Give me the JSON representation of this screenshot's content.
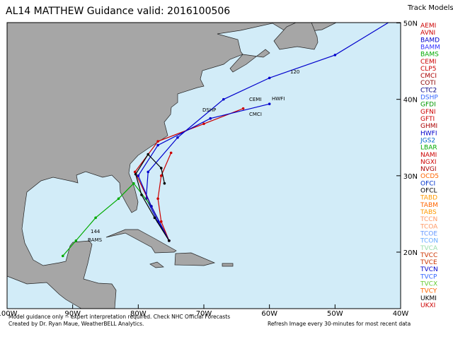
{
  "header": {
    "title": "AL14 MATTHEW Guidance valid: 2016100506",
    "legend_title": "Track Models"
  },
  "lat_ticks": [
    {
      "value": 50,
      "label": "50N"
    },
    {
      "value": 40,
      "label": "40N"
    },
    {
      "value": 30,
      "label": "30N"
    },
    {
      "value": 20,
      "label": "20N"
    }
  ],
  "lon_ticks": [
    {
      "value": -100,
      "label": "100W"
    },
    {
      "value": -90,
      "label": "90W"
    },
    {
      "value": -80,
      "label": "80W"
    },
    {
      "value": -70,
      "label": "70W"
    },
    {
      "value": -60,
      "label": "60W"
    },
    {
      "value": -50,
      "label": "50W"
    },
    {
      "value": -40,
      "label": "40W"
    }
  ],
  "models": [
    {
      "name": "AEMI",
      "color": "#cc0000"
    },
    {
      "name": "AVNI",
      "color": "#cc0000"
    },
    {
      "name": "BAMD",
      "color": "#0000cc",
      "lon": [
        -75.3,
        -77,
        -78.8,
        -78.5,
        -74,
        -67,
        -60,
        -50,
        -41
      ],
      "lat": [
        21.5,
        24,
        27,
        30.5,
        35,
        40,
        42.8,
        45.8,
        50.5
      ]
    },
    {
      "name": "BAMM",
      "color": "#3333ff"
    },
    {
      "name": "BAMS",
      "color": "#00aa00",
      "lon": [
        -75.3,
        -78,
        -80.7,
        -83,
        -86.5,
        -89.5,
        -91.5
      ],
      "lat": [
        21.5,
        26,
        29,
        27,
        24.5,
        21.5,
        19.5
      ]
    },
    {
      "name": "CEMI",
      "color": "#cc0000",
      "lon": [
        -75.3,
        -78,
        -80.5,
        -77,
        -70,
        -64
      ],
      "lat": [
        21.5,
        26,
        30.5,
        34.5,
        36.8,
        38.8
      ]
    },
    {
      "name": "CLP5",
      "color": "#cc0000",
      "lon": [
        -75.3,
        -76.5,
        -77,
        -76.5,
        -75
      ],
      "lat": [
        21.5,
        24,
        27,
        30,
        33
      ]
    },
    {
      "name": "CMCI",
      "color": "#aa0000"
    },
    {
      "name": "COTI",
      "color": "#880000"
    },
    {
      "name": "CTC2",
      "color": "#000088"
    },
    {
      "name": "DSHP",
      "color": "#3366ff"
    },
    {
      "name": "GFDI",
      "color": "#009900"
    },
    {
      "name": "GFNI",
      "color": "#cc0000"
    },
    {
      "name": "GFTI",
      "color": "#cc0000"
    },
    {
      "name": "GHMI",
      "color": "#aa0000"
    },
    {
      "name": "HWFI",
      "color": "#0000cc",
      "lon": [
        -75.3,
        -78,
        -80,
        -77,
        -69,
        -60
      ],
      "lat": [
        21.5,
        26,
        30,
        34,
        37.5,
        39.4
      ]
    },
    {
      "name": "JGS2",
      "color": "#0066cc"
    },
    {
      "name": "LBAR",
      "color": "#00aa00"
    },
    {
      "name": "NAMI",
      "color": "#cc0000"
    },
    {
      "name": "NGXI",
      "color": "#cc0000"
    },
    {
      "name": "NVGI",
      "color": "#aa0000"
    },
    {
      "name": "OCD5",
      "color": "#ff6600"
    },
    {
      "name": "OFCI",
      "color": "#0033cc"
    },
    {
      "name": "OFCL",
      "color": "#000000",
      "lon": [
        -75.3,
        -77.5,
        -79.5,
        -80.4,
        -78.5,
        -76.5,
        -76
      ],
      "lat": [
        21.5,
        24.5,
        27.5,
        30.2,
        32.8,
        31,
        29
      ]
    },
    {
      "name": "TABD",
      "color": "#ff9900"
    },
    {
      "name": "TABM",
      "color": "#ff6600"
    },
    {
      "name": "TABS",
      "color": "#ff9900"
    },
    {
      "name": "TCCN",
      "color": "#ff9966"
    },
    {
      "name": "TCOA",
      "color": "#ff9966"
    },
    {
      "name": "TCOE",
      "color": "#6699ff"
    },
    {
      "name": "TCON",
      "color": "#66aaff"
    },
    {
      "name": "TVCA",
      "color": "#99ddaa"
    },
    {
      "name": "TVCC",
      "color": "#cc3300"
    },
    {
      "name": "TVCE",
      "color": "#cc3300"
    },
    {
      "name": "TVCN",
      "color": "#0000cc"
    },
    {
      "name": "TVCP",
      "color": "#3366ff"
    },
    {
      "name": "TVCX",
      "color": "#66cc33"
    },
    {
      "name": "TVCY",
      "color": "#ff6600"
    },
    {
      "name": "UKMI",
      "color": "#000000"
    },
    {
      "name": "UKXI",
      "color": "#cc0000"
    }
  ],
  "map_labels": [
    "HWFI",
    "CEMI",
    "CMCI",
    "DSHP",
    "BAMS",
    "120",
    "144"
  ],
  "footer": {
    "line1": "Model guidance only -- expert interpretation required.  Check NHC Official Forecasts",
    "line2": "Created by Dr. Ryan Maue, WeatherBELL Analytics.",
    "line3": "Refresh Image every 30-minutes for most recent data"
  }
}
